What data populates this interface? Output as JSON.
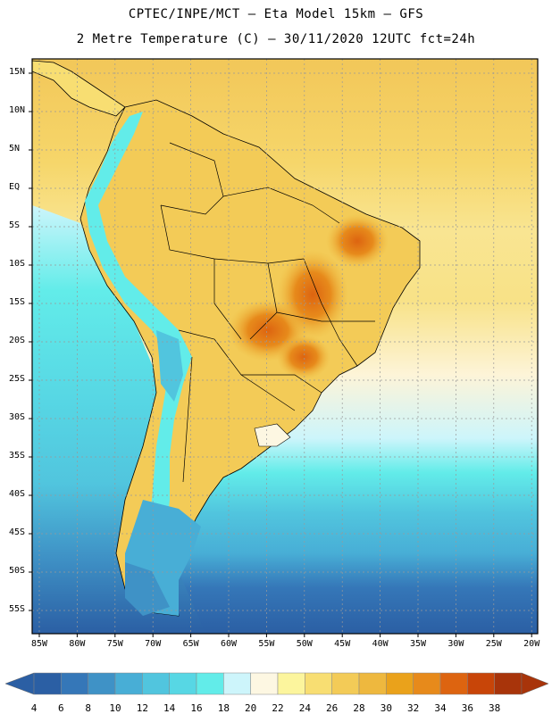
{
  "header": {
    "line1": "CPTEC/INPE/MCT –  Eta Model 15km – GFS",
    "line2": "2 Metre Temperature (C) – 30/11/2020 12UTC fct=24h"
  },
  "map": {
    "lat_labels": [
      "15N",
      "10N",
      "5N",
      "EQ",
      "5S",
      "10S",
      "15S",
      "20S",
      "25S",
      "30S",
      "35S",
      "40S",
      "45S",
      "50S",
      "55S"
    ],
    "lon_labels": [
      "85W",
      "80W",
      "75W",
      "70W",
      "65W",
      "60W",
      "55W",
      "50W",
      "45W",
      "40W",
      "35W",
      "30W",
      "25W",
      "20W"
    ]
  },
  "legend": {
    "labels": [
      "4",
      "6",
      "8",
      "10",
      "12",
      "14",
      "16",
      "18",
      "20",
      "22",
      "24",
      "26",
      "28",
      "30",
      "32",
      "34",
      "36",
      "38"
    ],
    "colors": [
      "#2b5fa4",
      "#3577b8",
      "#3f92c6",
      "#48aed6",
      "#51c5de",
      "#57d7e4",
      "#62ece9",
      "#cdf5fb",
      "#fdf7e2",
      "#fcf59d",
      "#f8de72",
      "#f3cb57",
      "#eeb83e",
      "#eaa21b",
      "#e78a1b",
      "#dd6410",
      "#c84508",
      "#a8340a"
    ]
  }
}
